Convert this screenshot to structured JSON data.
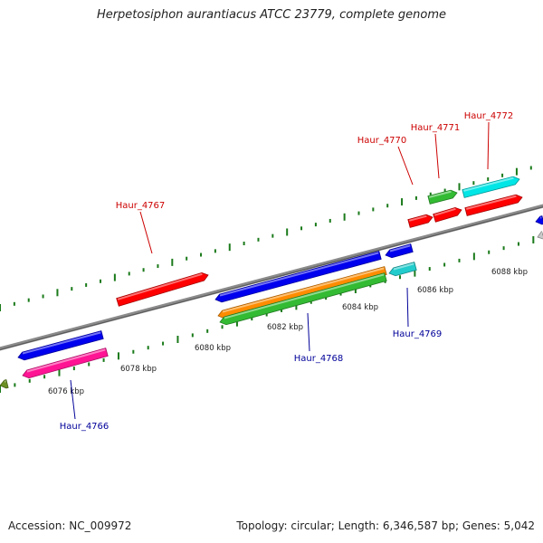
{
  "title": "Herpetosiphon aurantiacus ATCC 23779, complete genome",
  "footer": {
    "accession": "Accession: NC_009972",
    "summary": "Topology: circular; Length: 6,346,587 bp; Genes: 5,042"
  },
  "colors": {
    "backbone": "#8a8a8a",
    "tick": "#1a7a1a",
    "label_forward": "#cc0000",
    "label_reverse": "#000099"
  },
  "kbp_labels": [
    "6076 kbp",
    "6078 kbp",
    "6080 kbp",
    "6082 kbp",
    "6084 kbp",
    "6086 kbp",
    "6088 kbp"
  ],
  "gene_labels": {
    "forward": [
      "Haur_4767",
      "Haur_4770",
      "Haur_4771",
      "Haur_4772"
    ],
    "reverse": [
      "Haur_4766",
      "Haur_4768",
      "Haur_4769"
    ]
  },
  "feature_colors": [
    "#ff0000",
    "#0000ee",
    "#ff1493",
    "#ff8c00",
    "#33bb33",
    "#00e5e5",
    "#22cccc",
    "#6b8e23",
    "#c8c8c8"
  ]
}
